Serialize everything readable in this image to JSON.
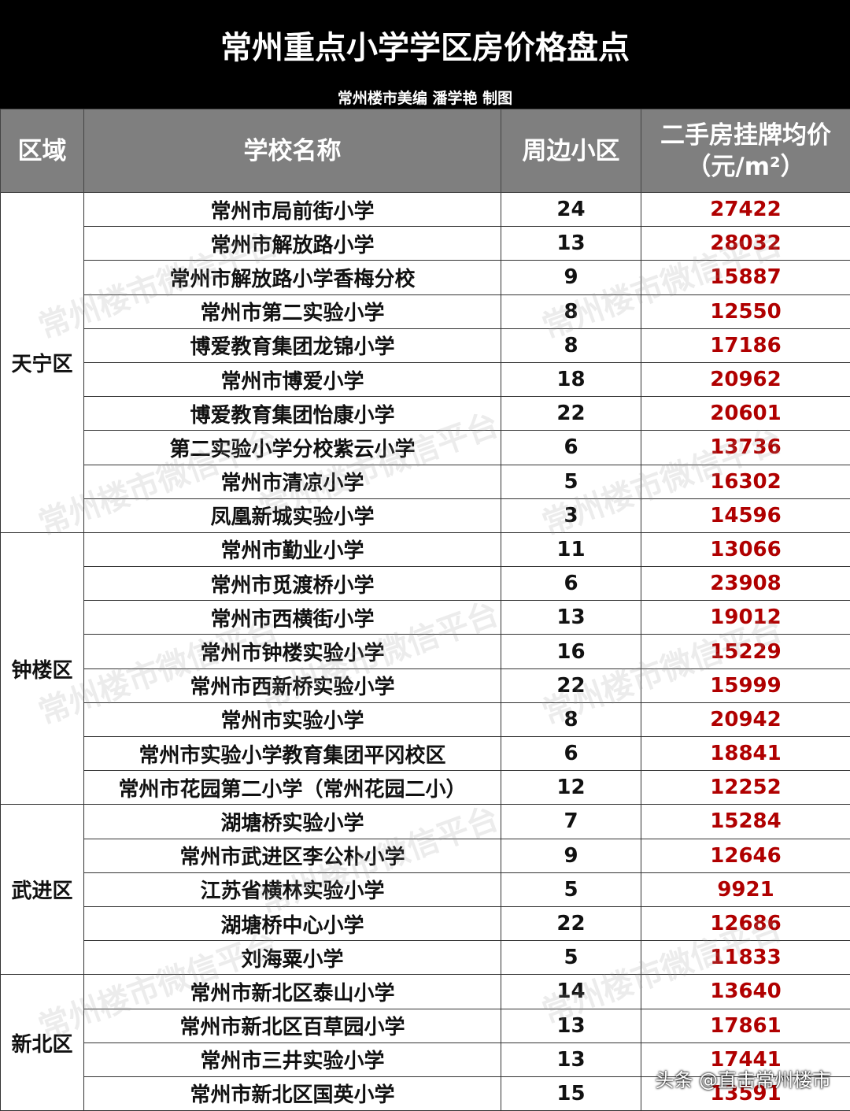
{
  "title": "常州重点小学学区房价格盘点",
  "subtitle": "常州楼市美编 潘学艳 制图",
  "headers": [
    "区域",
    "学校名称",
    "周边小区",
    "二手房挂牌均价",
    "（元/m²）"
  ],
  "watermark": "常州楼市微信平台",
  "footer": "头条 @直击常州楼市",
  "groups": [
    {
      "region": "天宁区",
      "rows": [
        [
          "常州市局前街小学",
          "24",
          "27422"
        ],
        [
          "常州市解放路小学",
          "13",
          "28032"
        ],
        [
          "常州市解放路小学香梅分校",
          "9",
          "15887"
        ],
        [
          "常州市第二实验小学",
          "8",
          "12550"
        ],
        [
          "博爱教育集团龙锦小学",
          "8",
          "17186"
        ],
        [
          "常州市博爱小学",
          "18",
          "20962"
        ],
        [
          "博爱教育集团怡康小学",
          "22",
          "20601"
        ],
        [
          "第二实验小学分校紫云小学",
          "6",
          "13736"
        ],
        [
          "常州市清凉小学",
          "5",
          "16302"
        ],
        [
          "凤凰新城实验小学",
          "3",
          "14596"
        ]
      ]
    },
    {
      "region": "钟楼区",
      "rows": [
        [
          "常州市勤业小学",
          "11",
          "13066"
        ],
        [
          "常州市觅渡桥小学",
          "6",
          "23908"
        ],
        [
          "常州市西横街小学",
          "13",
          "19012"
        ],
        [
          "常州市钟楼实验小学",
          "16",
          "15229"
        ],
        [
          "常州市西新桥实验小学",
          "22",
          "15999"
        ],
        [
          "常州市实验小学",
          "8",
          "20942"
        ],
        [
          "常州市实验小学教育集团平冈校区",
          "6",
          "18841"
        ],
        [
          "常州市花园第二小学（常州花园二小）",
          "12",
          "12252"
        ]
      ]
    },
    {
      "region": "武进区",
      "rows": [
        [
          "湖塘桥实验小学",
          "7",
          "15284"
        ],
        [
          "常州市武进区李公朴小学",
          "9",
          "12646"
        ],
        [
          "江苏省横林实验小学",
          "5",
          "9921"
        ],
        [
          "湖塘桥中心小学",
          "22",
          "12686"
        ],
        [
          "刘海粟小学",
          "5",
          "11833"
        ]
      ]
    },
    {
      "region": "新北区",
      "rows": [
        [
          "常州市新北区泰山小学",
          "14",
          "13640"
        ],
        [
          "常州市新北区百草园小学",
          "13",
          "17861"
        ],
        [
          "常州市三井实验小学",
          "13",
          "17441"
        ],
        [
          "常州市新北区国英小学",
          "15",
          "13591"
        ]
      ]
    }
  ]
}
